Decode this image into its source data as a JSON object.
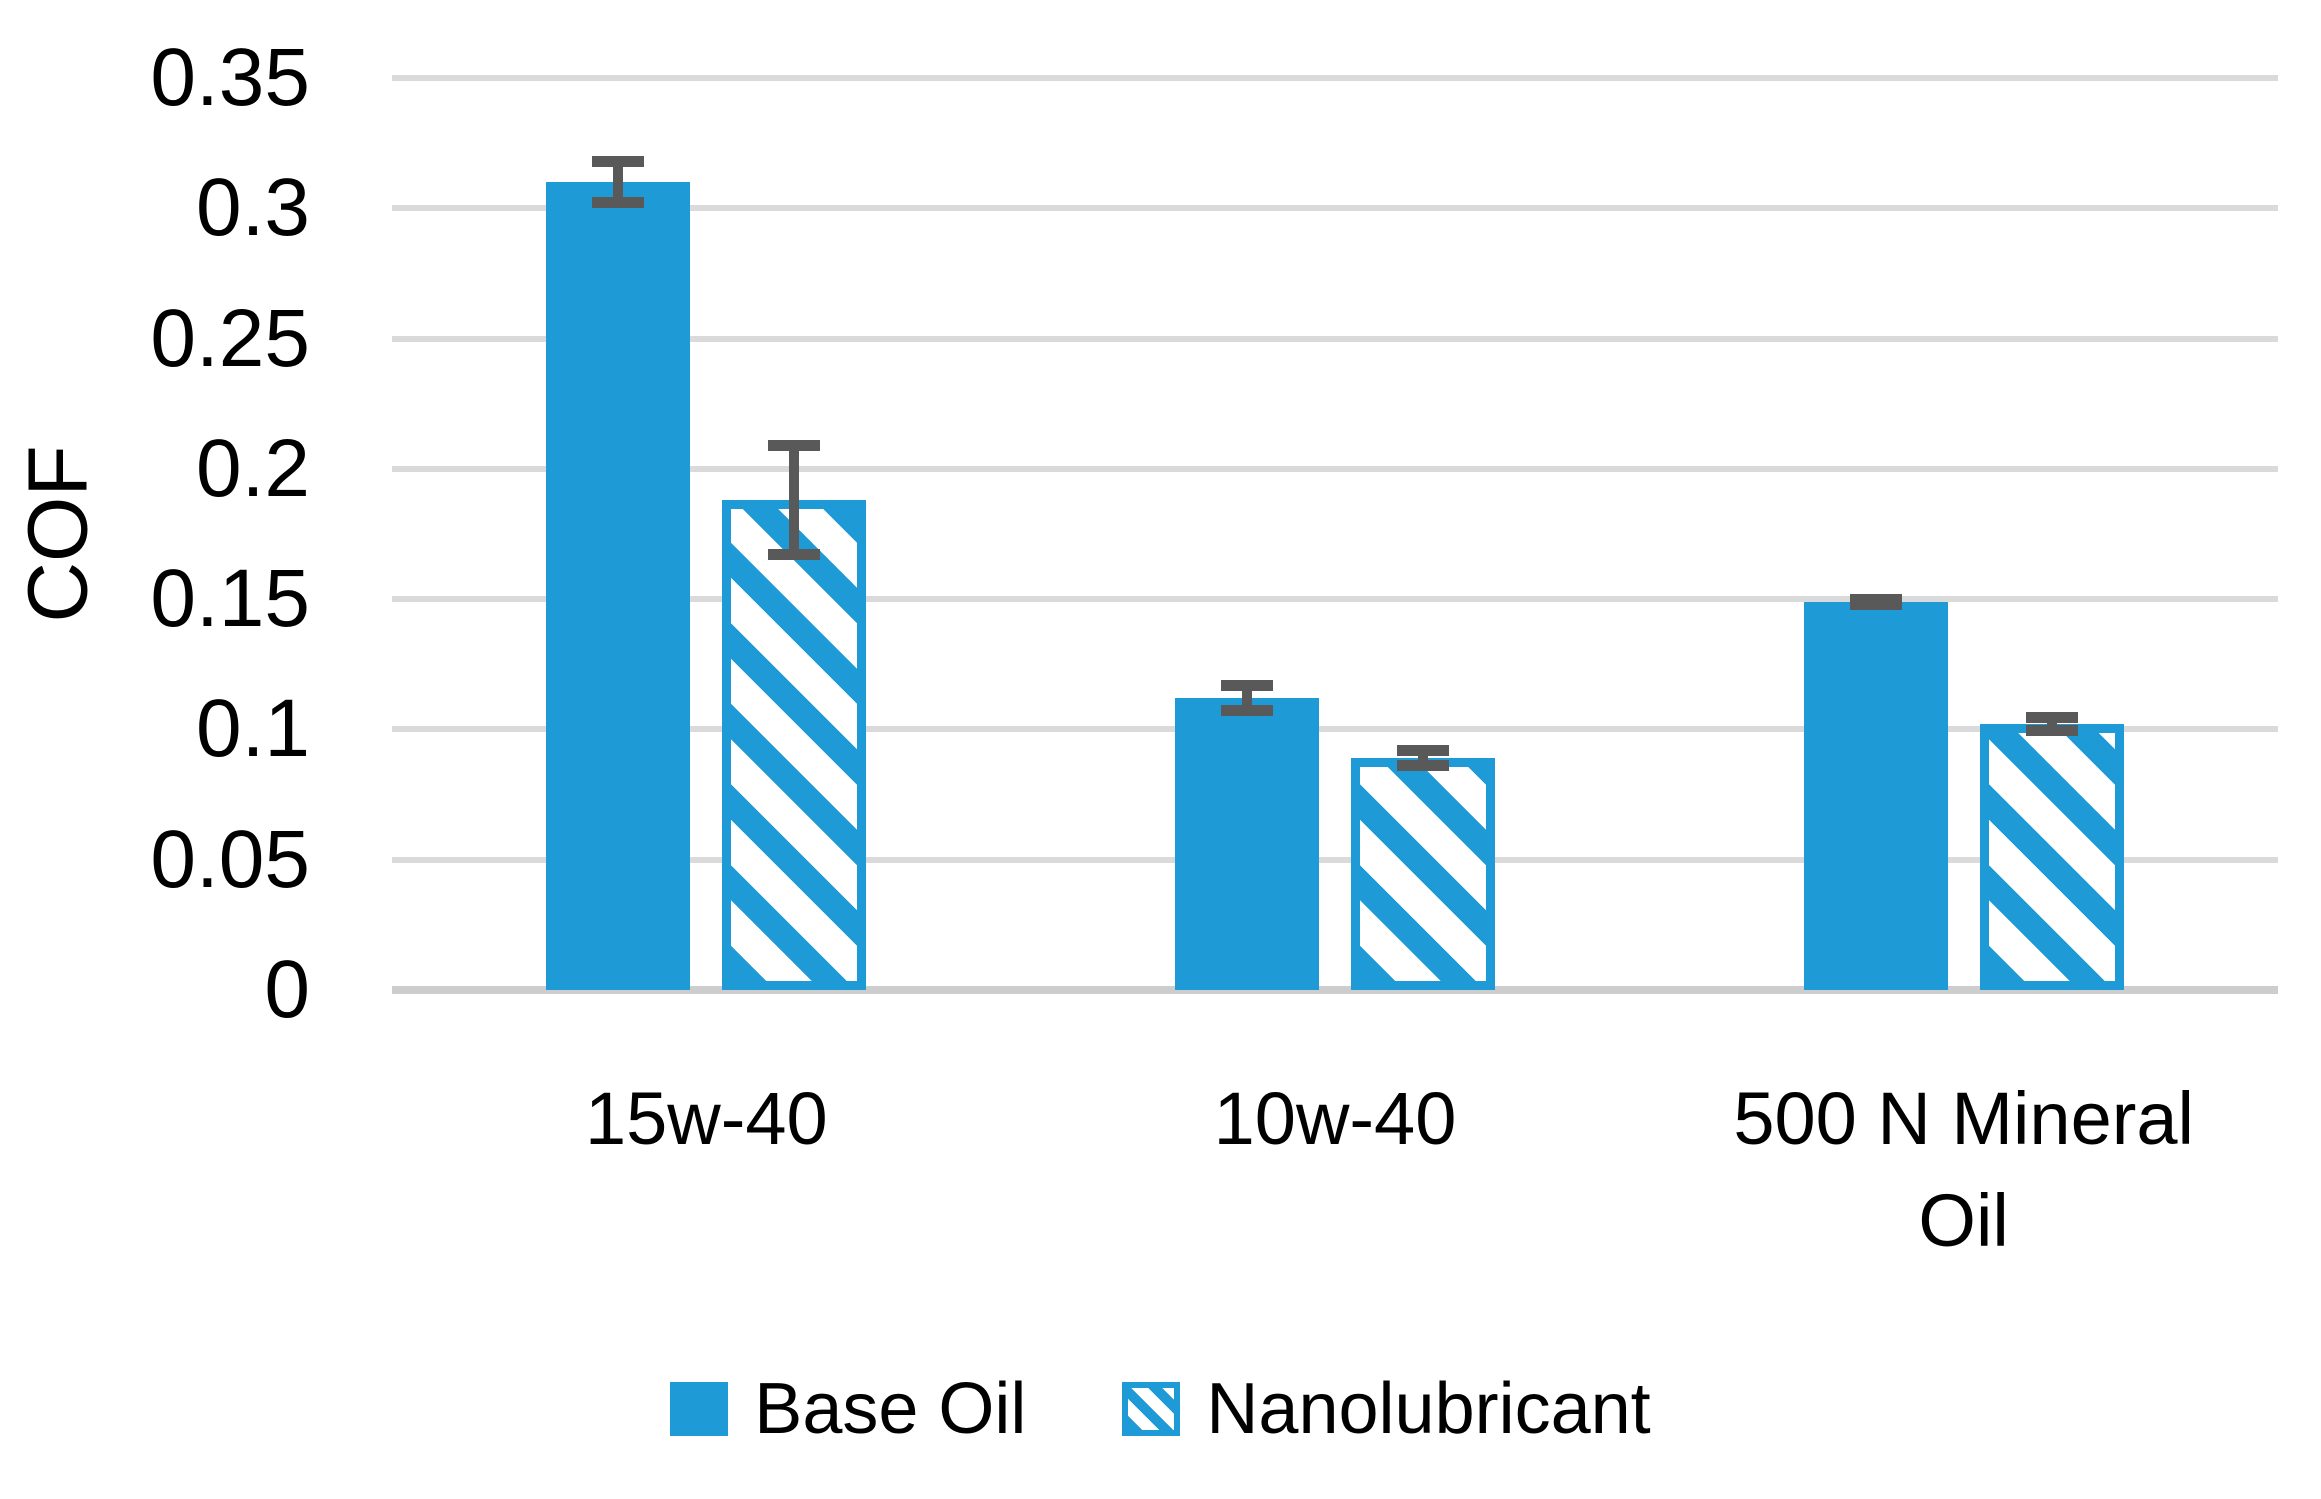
{
  "chart_data": {
    "type": "bar",
    "title": "",
    "xlabel": "",
    "ylabel": "COF",
    "categories": [
      "15w-40",
      "10w-40",
      "500 N Mineral Oil"
    ],
    "series": [
      {
        "name": "Base Oil",
        "style": "solid",
        "values": [
          0.31,
          0.112,
          0.149
        ],
        "errors": [
          0.01,
          0.007,
          0.003
        ]
      },
      {
        "name": "Nanolubricant",
        "style": "hatched",
        "values": [
          0.188,
          0.089,
          0.102
        ],
        "errors": [
          0.023,
          0.005,
          0.0045
        ]
      }
    ],
    "ylim": [
      0,
      0.35
    ],
    "yticks": [
      0,
      0.05,
      0.1,
      0.15,
      0.2,
      0.25,
      0.3,
      0.35
    ],
    "ytick_labels": [
      "0",
      "0.05",
      "0.1",
      "0.15",
      "0.2",
      "0.25",
      "0.3",
      "0.35"
    ],
    "grid": true,
    "error_bars": true,
    "legend_position": "bottom",
    "colors": {
      "bar_blue": "#1e9ad6",
      "hatch_background": "#ffffff",
      "gridline": "#dadada",
      "axis_line": "#cdcdcd",
      "error_bar": "#595959",
      "text": "#000000"
    }
  }
}
